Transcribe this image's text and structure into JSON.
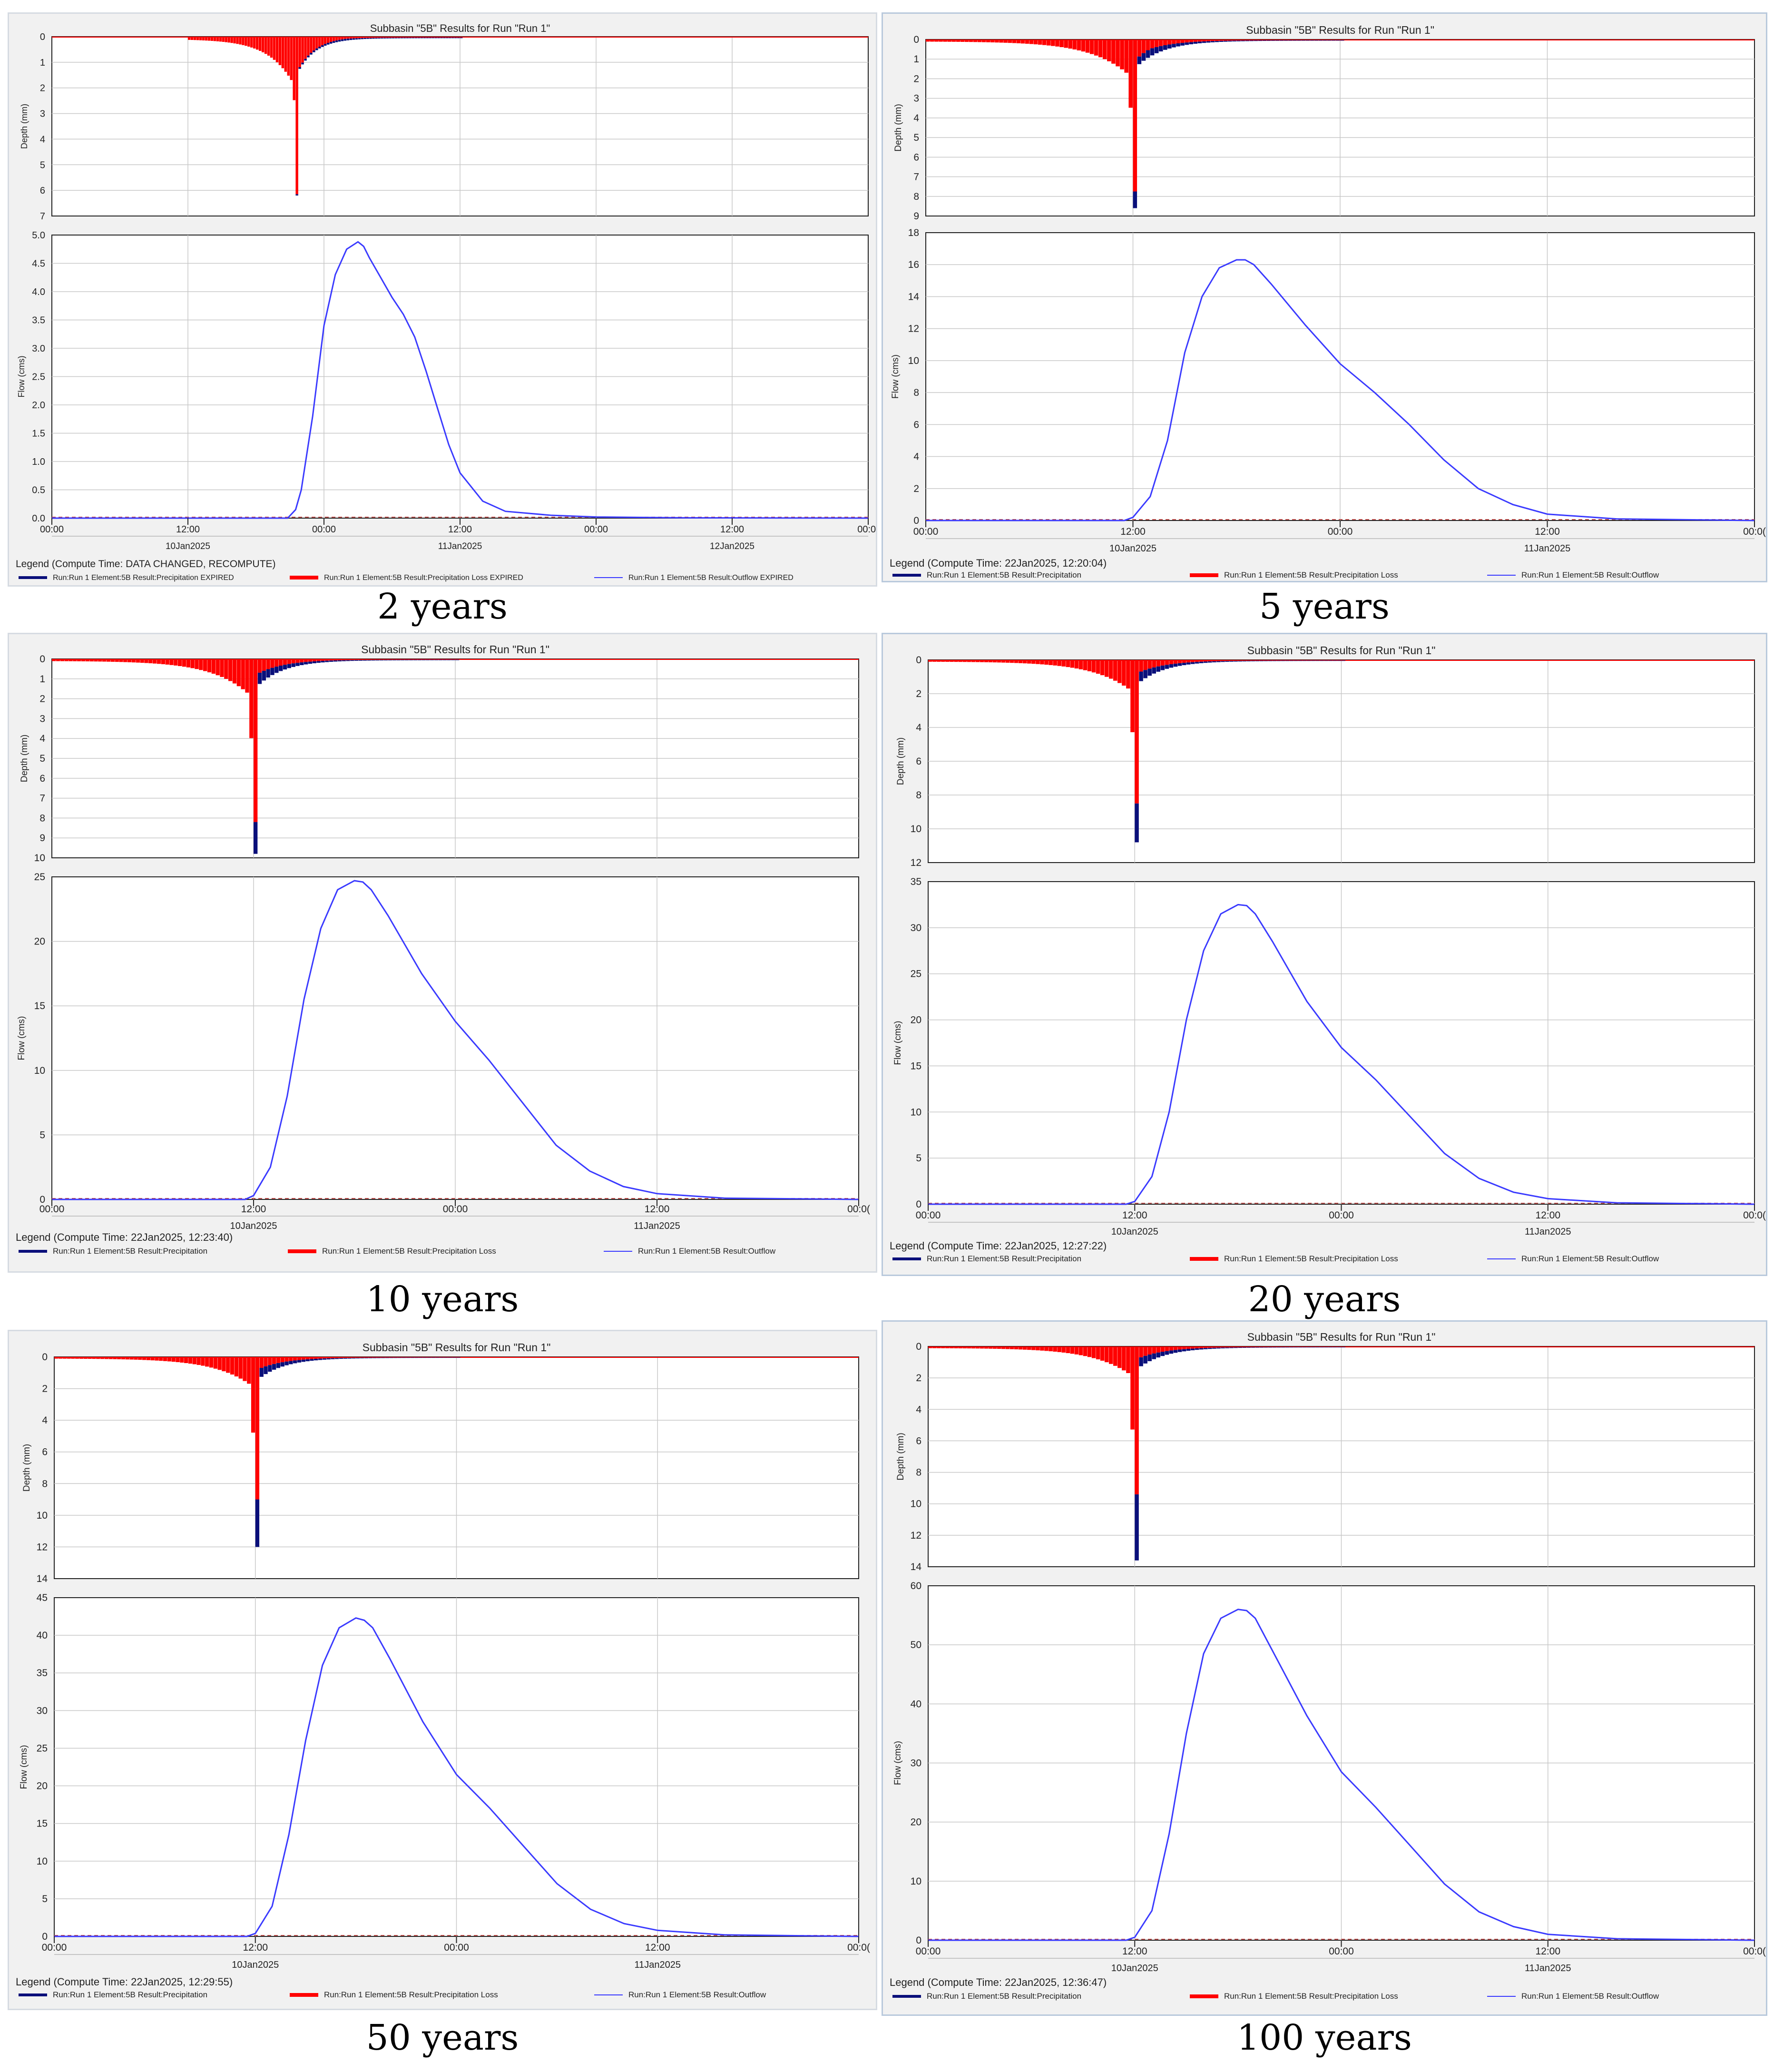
{
  "colors": {
    "precipitation": "#0a0f7a",
    "loss": "#ff0000",
    "outflow": "#3a3aff",
    "grid": "#c8c8c8",
    "baseline_dash": "#c0504d"
  },
  "chart_data": [
    {
      "type": "line",
      "panel": "2-years",
      "title": "Subbasin \"5B\" Results for Run \"Run 1\"",
      "caption": "2 years",
      "depth_ylabel": "Depth (mm)",
      "flow_ylabel": "Flow (cms)",
      "x_ticks": [
        "00:00",
        "12:00",
        "00:00",
        "12:00",
        "00:00",
        "12:00",
        "00:0("
      ],
      "x_date_labels": [
        {
          "tick": 1,
          "label": "10Jan2025"
        },
        {
          "tick": 3,
          "label": "11Jan2025"
        },
        {
          "tick": 5,
          "label": "12Jan2025"
        }
      ],
      "depth_ylim": [
        0,
        7
      ],
      "depth_ticks": [
        "0",
        "1",
        "2",
        "3",
        "4",
        "5",
        "6",
        "7"
      ],
      "flow_ylim": [
        0,
        5.0
      ],
      "flow_ticks": [
        "0.0",
        "0.5",
        "1.0",
        "1.5",
        "2.0",
        "2.5",
        "3.0",
        "3.5",
        "4.0",
        "4.5",
        "5.0"
      ],
      "legend_title": "Legend (Compute Time: DATA CHANGED, RECOMPUTE)",
      "legend": [
        "Run:Run 1 Element:5B Result:Precipitation EXPIRED",
        "Run:Run 1 Element:5B Result:Precipitation Loss EXPIRED",
        "Run:Run 1 Element:5B Result:Outflow EXPIRED"
      ],
      "rain": {
        "start_h": 12,
        "peak_h": 21.5,
        "end_h": 36,
        "peak_depth": 6.2,
        "second_depth": 2.5,
        "precip_peak": 0.05
      },
      "outflow_hours": [
        0,
        20.8,
        21.5,
        22.0,
        23.0,
        24.0,
        25.0,
        26.0,
        27.0,
        27.5,
        28.0,
        29.0,
        30.0,
        31.0,
        32.0,
        33.0,
        34.0,
        35.0,
        36.0,
        38.0,
        40.0,
        44.0,
        48.0,
        56.0,
        72.0
      ],
      "outflow_values": [
        0,
        0,
        0.15,
        0.5,
        1.8,
        3.4,
        4.3,
        4.75,
        4.88,
        4.8,
        4.6,
        4.25,
        3.9,
        3.6,
        3.2,
        2.6,
        1.95,
        1.3,
        0.8,
        0.3,
        0.12,
        0.05,
        0.02,
        0.005,
        0
      ]
    },
    {
      "type": "line",
      "panel": "5-years",
      "title": "Subbasin \"5B\" Results for Run \"Run 1\"",
      "caption": "5 years",
      "depth_ylabel": "Depth (mm)",
      "flow_ylabel": "Flow (cms)",
      "x_ticks": [
        "00:00",
        "12:00",
        "00:00",
        "12:00",
        "00:0("
      ],
      "x_date_labels": [
        {
          "tick": 1,
          "label": "10Jan2025"
        },
        {
          "tick": 3,
          "label": "11Jan2025"
        }
      ],
      "depth_ylim": [
        0,
        9
      ],
      "depth_ticks": [
        "0",
        "1",
        "2",
        "3",
        "4",
        "5",
        "6",
        "7",
        "8",
        "9"
      ],
      "flow_ylim": [
        0,
        18
      ],
      "flow_ticks": [
        "0",
        "2",
        "4",
        "6",
        "8",
        "10",
        "12",
        "14",
        "16",
        "18"
      ],
      "legend_title": "Legend (Compute Time: 22Jan2025, 12:20:04)",
      "legend": [
        "Run:Run 1 Element:5B Result:Precipitation",
        "Run:Run 1 Element:5B Result:Precipitation Loss",
        "Run:Run 1 Element:5B Result:Outflow"
      ],
      "rain": {
        "start_h": 0,
        "peak_h": 12,
        "end_h": 24,
        "peak_depth": 8.6,
        "second_depth": 3.5,
        "precip_peak": 0.85
      },
      "outflow_hours": [
        0,
        11.5,
        12.0,
        13.0,
        14.0,
        15.0,
        16.0,
        17.0,
        18.0,
        18.5,
        19.0,
        20.0,
        22.0,
        24.0,
        26.0,
        28.0,
        30.0,
        32.0,
        34.0,
        36.0,
        40.0,
        48.0
      ],
      "outflow_values": [
        0,
        0,
        0.2,
        1.5,
        5.0,
        10.5,
        14.0,
        15.8,
        16.3,
        16.3,
        16.0,
        14.8,
        12.2,
        9.8,
        8.0,
        6.0,
        3.8,
        2.0,
        1.0,
        0.4,
        0.1,
        0
      ]
    },
    {
      "type": "line",
      "panel": "10-years",
      "title": "Subbasin \"5B\" Results for Run \"Run 1\"",
      "caption": "10 years",
      "depth_ylabel": "Depth (mm)",
      "flow_ylabel": "Flow (cms)",
      "x_ticks": [
        "00:00",
        "12:00",
        "00:00",
        "12:00",
        "00:0("
      ],
      "x_date_labels": [
        {
          "tick": 1,
          "label": "10Jan2025"
        },
        {
          "tick": 3,
          "label": "11Jan2025"
        }
      ],
      "depth_ylim": [
        0,
        10
      ],
      "depth_ticks": [
        "0",
        "1",
        "2",
        "3",
        "4",
        "5",
        "6",
        "7",
        "8",
        "9",
        "10"
      ],
      "flow_ylim": [
        0,
        25
      ],
      "flow_ticks": [
        "0",
        "5",
        "10",
        "15",
        "20",
        "25"
      ],
      "legend_title": "Legend (Compute Time: 22Jan2025, 12:23:40)",
      "legend": [
        "Run:Run 1 Element:5B Result:Precipitation",
        "Run:Run 1 Element:5B Result:Precipitation Loss",
        "Run:Run 1 Element:5B Result:Outflow"
      ],
      "rain": {
        "start_h": 0,
        "peak_h": 12,
        "end_h": 24,
        "peak_depth": 9.8,
        "second_depth": 4.0,
        "precip_peak": 1.6
      },
      "outflow_hours": [
        0,
        11.5,
        12.0,
        13.0,
        14.0,
        15.0,
        16.0,
        17.0,
        18.0,
        18.5,
        19.0,
        20.0,
        22.0,
        24.0,
        26.0,
        28.0,
        30.0,
        32.0,
        34.0,
        36.0,
        40.0,
        48.0
      ],
      "outflow_values": [
        0,
        0,
        0.3,
        2.5,
        8.0,
        15.5,
        21.0,
        24.0,
        24.7,
        24.6,
        24.0,
        22.0,
        17.5,
        13.8,
        10.8,
        7.5,
        4.2,
        2.2,
        1.0,
        0.45,
        0.1,
        0
      ]
    },
    {
      "type": "line",
      "panel": "20-years",
      "title": "Subbasin \"5B\" Results for Run \"Run 1\"",
      "caption": "20 years",
      "depth_ylabel": "Depth (mm)",
      "flow_ylabel": "Flow (cms)",
      "x_ticks": [
        "00:00",
        "12:00",
        "00:00",
        "12:00",
        "00:0("
      ],
      "x_date_labels": [
        {
          "tick": 1,
          "label": "10Jan2025"
        },
        {
          "tick": 3,
          "label": "11Jan2025"
        }
      ],
      "depth_ylim": [
        0,
        12
      ],
      "depth_ticks": [
        "0",
        "2",
        "4",
        "6",
        "8",
        "10",
        "12"
      ],
      "flow_ylim": [
        0,
        35
      ],
      "flow_ticks": [
        "0",
        "5",
        "10",
        "15",
        "20",
        "25",
        "30",
        "35"
      ],
      "legend_title": "Legend (Compute Time: 22Jan2025, 12:27:22)",
      "legend": [
        "Run:Run 1 Element:5B Result:Precipitation",
        "Run:Run 1 Element:5B Result:Precipitation Loss",
        "Run:Run 1 Element:5B Result:Outflow"
      ],
      "rain": {
        "start_h": 0,
        "peak_h": 12,
        "end_h": 24,
        "peak_depth": 10.8,
        "second_depth": 4.3,
        "precip_peak": 2.3
      },
      "outflow_hours": [
        0,
        11.5,
        12.0,
        13.0,
        14.0,
        15.0,
        16.0,
        17.0,
        18.0,
        18.5,
        19.0,
        20.0,
        22.0,
        24.0,
        26.0,
        28.0,
        30.0,
        32.0,
        34.0,
        36.0,
        40.0,
        48.0
      ],
      "outflow_values": [
        0,
        0,
        0.3,
        3.0,
        10.0,
        20.0,
        27.5,
        31.5,
        32.5,
        32.4,
        31.5,
        28.5,
        22.0,
        17.0,
        13.5,
        9.5,
        5.5,
        2.8,
        1.3,
        0.6,
        0.15,
        0
      ]
    },
    {
      "type": "line",
      "panel": "50-years",
      "title": "Subbasin \"5B\" Results for Run \"Run 1\"",
      "caption": "50 years",
      "depth_ylabel": "Depth (mm)",
      "flow_ylabel": "Flow (cms)",
      "x_ticks": [
        "00:00",
        "12:00",
        "00:00",
        "12:00",
        "00:0("
      ],
      "x_date_labels": [
        {
          "tick": 1,
          "label": "10Jan2025"
        },
        {
          "tick": 3,
          "label": "11Jan2025"
        }
      ],
      "depth_ylim": [
        0,
        14
      ],
      "depth_ticks": [
        "0",
        "2",
        "4",
        "6",
        "8",
        "10",
        "12",
        "14"
      ],
      "flow_ylim": [
        0,
        45
      ],
      "flow_ticks": [
        "0",
        "5",
        "10",
        "15",
        "20",
        "25",
        "30",
        "35",
        "40",
        "45"
      ],
      "legend_title": "Legend (Compute Time: 22Jan2025, 12:29:55)",
      "legend": [
        "Run:Run 1 Element:5B Result:Precipitation",
        "Run:Run 1 Element:5B Result:Precipitation Loss",
        "Run:Run 1 Element:5B Result:Outflow"
      ],
      "rain": {
        "start_h": 0,
        "peak_h": 12,
        "end_h": 24,
        "peak_depth": 12.0,
        "second_depth": 4.8,
        "precip_peak": 3.0
      },
      "outflow_hours": [
        0,
        11.5,
        12.0,
        13.0,
        14.0,
        15.0,
        16.0,
        17.0,
        18.0,
        18.5,
        19.0,
        20.0,
        22.0,
        24.0,
        26.0,
        28.0,
        30.0,
        32.0,
        34.0,
        36.0,
        40.0,
        48.0
      ],
      "outflow_values": [
        0,
        0,
        0.4,
        4.0,
        13.5,
        26.0,
        36.0,
        41.0,
        42.3,
        42.0,
        41.0,
        37.0,
        28.5,
        21.5,
        17.0,
        12.0,
        7.0,
        3.6,
        1.7,
        0.8,
        0.2,
        0
      ]
    },
    {
      "type": "line",
      "panel": "100-years",
      "title": "Subbasin \"5B\" Results for Run \"Run 1\"",
      "caption": "100 years",
      "depth_ylabel": "Depth (mm)",
      "flow_ylabel": "Flow (cms)",
      "x_ticks": [
        "00:00",
        "12:00",
        "00:00",
        "12:00",
        "00:0("
      ],
      "x_date_labels": [
        {
          "tick": 1,
          "label": "10Jan2025"
        },
        {
          "tick": 3,
          "label": "11Jan2025"
        }
      ],
      "depth_ylim": [
        0,
        14
      ],
      "depth_ticks": [
        "0",
        "2",
        "4",
        "6",
        "8",
        "10",
        "12",
        "14"
      ],
      "flow_ylim": [
        0,
        60
      ],
      "flow_ticks": [
        "0",
        "10",
        "20",
        "30",
        "40",
        "50",
        "60"
      ],
      "legend_title": "Legend (Compute Time: 22Jan2025, 12:36:47)",
      "legend": [
        "Run:Run 1 Element:5B Result:Precipitation",
        "Run:Run 1 Element:5B Result:Precipitation Loss",
        "Run:Run 1 Element:5B Result:Outflow"
      ],
      "rain": {
        "start_h": 0,
        "peak_h": 12,
        "end_h": 24,
        "peak_depth": 13.6,
        "second_depth": 5.3,
        "precip_peak": 4.2
      },
      "outflow_hours": [
        0,
        11.5,
        12.0,
        13.0,
        14.0,
        15.0,
        16.0,
        17.0,
        18.0,
        18.5,
        19.0,
        20.0,
        22.0,
        24.0,
        26.0,
        28.0,
        30.0,
        32.0,
        34.0,
        36.0,
        40.0,
        48.0
      ],
      "outflow_values": [
        0,
        0,
        0.5,
        5.0,
        18.0,
        35.0,
        48.5,
        54.5,
        56.0,
        55.8,
        54.5,
        49.0,
        38.0,
        28.5,
        22.5,
        16.0,
        9.5,
        4.8,
        2.3,
        1.0,
        0.25,
        0
      ]
    }
  ]
}
